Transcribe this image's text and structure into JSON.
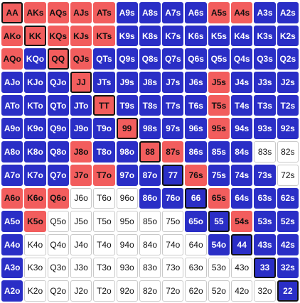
{
  "colors": {
    "raise": "#f25d5d",
    "call": "#2a2ec6",
    "fold": "#ffffff"
  },
  "grid": {
    "rows": [
      {
        "cells": [
          {
            "label": "AA",
            "action": "raise"
          },
          {
            "label": "AKs",
            "action": "raise"
          },
          {
            "label": "AQs",
            "action": "raise"
          },
          {
            "label": "AJs",
            "action": "raise"
          },
          {
            "label": "ATs",
            "action": "raise"
          },
          {
            "label": "A9s",
            "action": "call"
          },
          {
            "label": "A8s",
            "action": "call"
          },
          {
            "label": "A7s",
            "action": "call"
          },
          {
            "label": "A6s",
            "action": "call"
          },
          {
            "label": "A5s",
            "action": "raise"
          },
          {
            "label": "A4s",
            "action": "raise"
          },
          {
            "label": "A3s",
            "action": "call"
          },
          {
            "label": "A2s",
            "action": "call"
          }
        ]
      },
      {
        "cells": [
          {
            "label": "AKo",
            "action": "raise"
          },
          {
            "label": "KK",
            "action": "raise"
          },
          {
            "label": "KQs",
            "action": "raise"
          },
          {
            "label": "KJs",
            "action": "raise"
          },
          {
            "label": "KTs",
            "action": "raise"
          },
          {
            "label": "K9s",
            "action": "call"
          },
          {
            "label": "K8s",
            "action": "call"
          },
          {
            "label": "K7s",
            "action": "call"
          },
          {
            "label": "K6s",
            "action": "call"
          },
          {
            "label": "K5s",
            "action": "call"
          },
          {
            "label": "K4s",
            "action": "call"
          },
          {
            "label": "K3s",
            "action": "call"
          },
          {
            "label": "K2s",
            "action": "call"
          }
        ]
      },
      {
        "cells": [
          {
            "label": "AQo",
            "action": "raise"
          },
          {
            "label": "KQo",
            "action": "call"
          },
          {
            "label": "QQ",
            "action": "raise"
          },
          {
            "label": "QJs",
            "action": "raise"
          },
          {
            "label": "QTs",
            "action": "call"
          },
          {
            "label": "Q9s",
            "action": "call"
          },
          {
            "label": "Q8s",
            "action": "call"
          },
          {
            "label": "Q7s",
            "action": "call"
          },
          {
            "label": "Q6s",
            "action": "call"
          },
          {
            "label": "Q5s",
            "action": "call"
          },
          {
            "label": "Q4s",
            "action": "call"
          },
          {
            "label": "Q3s",
            "action": "call"
          },
          {
            "label": "Q2s",
            "action": "call"
          }
        ]
      },
      {
        "cells": [
          {
            "label": "AJo",
            "action": "call"
          },
          {
            "label": "KJo",
            "action": "call"
          },
          {
            "label": "QJo",
            "action": "call"
          },
          {
            "label": "JJ",
            "action": "raise"
          },
          {
            "label": "JTs",
            "action": "call"
          },
          {
            "label": "J9s",
            "action": "call"
          },
          {
            "label": "J8s",
            "action": "call"
          },
          {
            "label": "J7s",
            "action": "call"
          },
          {
            "label": "J6s",
            "action": "call"
          },
          {
            "label": "J5s",
            "action": "raise"
          },
          {
            "label": "J4s",
            "action": "call"
          },
          {
            "label": "J3s",
            "action": "call"
          },
          {
            "label": "J2s",
            "action": "call"
          }
        ]
      },
      {
        "cells": [
          {
            "label": "ATo",
            "action": "call"
          },
          {
            "label": "KTo",
            "action": "call"
          },
          {
            "label": "QTo",
            "action": "call"
          },
          {
            "label": "JTo",
            "action": "call"
          },
          {
            "label": "TT",
            "action": "raise"
          },
          {
            "label": "T9s",
            "action": "call"
          },
          {
            "label": "T8s",
            "action": "call"
          },
          {
            "label": "T7s",
            "action": "call"
          },
          {
            "label": "T6s",
            "action": "call"
          },
          {
            "label": "T5s",
            "action": "raise"
          },
          {
            "label": "T4s",
            "action": "call"
          },
          {
            "label": "T3s",
            "action": "call"
          },
          {
            "label": "T2s",
            "action": "call"
          }
        ]
      },
      {
        "cells": [
          {
            "label": "A9o",
            "action": "call"
          },
          {
            "label": "K9o",
            "action": "call"
          },
          {
            "label": "Q9o",
            "action": "call"
          },
          {
            "label": "J9o",
            "action": "call"
          },
          {
            "label": "T9o",
            "action": "call"
          },
          {
            "label": "99",
            "action": "raise"
          },
          {
            "label": "98s",
            "action": "call"
          },
          {
            "label": "97s",
            "action": "call"
          },
          {
            "label": "96s",
            "action": "call"
          },
          {
            "label": "95s",
            "action": "raise"
          },
          {
            "label": "94s",
            "action": "call"
          },
          {
            "label": "93s",
            "action": "call"
          },
          {
            "label": "92s",
            "action": "call"
          }
        ]
      },
      {
        "cells": [
          {
            "label": "A8o",
            "action": "call"
          },
          {
            "label": "K8o",
            "action": "call"
          },
          {
            "label": "Q8o",
            "action": "call"
          },
          {
            "label": "J8o",
            "action": "raise"
          },
          {
            "label": "T8o",
            "action": "call"
          },
          {
            "label": "98o",
            "action": "call"
          },
          {
            "label": "88",
            "action": "raise"
          },
          {
            "label": "87s",
            "action": "raise"
          },
          {
            "label": "86s",
            "action": "call"
          },
          {
            "label": "85s",
            "action": "call"
          },
          {
            "label": "84s",
            "action": "call"
          },
          {
            "label": "83s",
            "action": "fold"
          },
          {
            "label": "82s",
            "action": "fold"
          }
        ]
      },
      {
        "cells": [
          {
            "label": "A7o",
            "action": "call"
          },
          {
            "label": "K7o",
            "action": "call"
          },
          {
            "label": "Q7o",
            "action": "call"
          },
          {
            "label": "J7o",
            "action": "raise"
          },
          {
            "label": "T7o",
            "action": "raise"
          },
          {
            "label": "97o",
            "action": "call"
          },
          {
            "label": "87o",
            "action": "call"
          },
          {
            "label": "77",
            "action": "call"
          },
          {
            "label": "76s",
            "action": "raise"
          },
          {
            "label": "75s",
            "action": "call"
          },
          {
            "label": "74s",
            "action": "call"
          },
          {
            "label": "73s",
            "action": "call"
          },
          {
            "label": "72s",
            "action": "fold"
          }
        ]
      },
      {
        "cells": [
          {
            "label": "A6o",
            "action": "raise"
          },
          {
            "label": "K6o",
            "action": "raise"
          },
          {
            "label": "Q6o",
            "action": "raise"
          },
          {
            "label": "J6o",
            "action": "fold"
          },
          {
            "label": "T6o",
            "action": "fold"
          },
          {
            "label": "96o",
            "action": "fold"
          },
          {
            "label": "86o",
            "action": "call"
          },
          {
            "label": "76o",
            "action": "call"
          },
          {
            "label": "66",
            "action": "call"
          },
          {
            "label": "65s",
            "action": "raise"
          },
          {
            "label": "64s",
            "action": "call"
          },
          {
            "label": "63s",
            "action": "call"
          },
          {
            "label": "62s",
            "action": "call"
          }
        ]
      },
      {
        "cells": [
          {
            "label": "A5o",
            "action": "call"
          },
          {
            "label": "K5o",
            "action": "raise"
          },
          {
            "label": "Q5o",
            "action": "fold"
          },
          {
            "label": "J5o",
            "action": "fold"
          },
          {
            "label": "T5o",
            "action": "fold"
          },
          {
            "label": "95o",
            "action": "fold"
          },
          {
            "label": "85o",
            "action": "fold"
          },
          {
            "label": "75o",
            "action": "fold"
          },
          {
            "label": "65o",
            "action": "call"
          },
          {
            "label": "55",
            "action": "call"
          },
          {
            "label": "54s",
            "action": "raise"
          },
          {
            "label": "53s",
            "action": "call"
          },
          {
            "label": "52s",
            "action": "call"
          }
        ]
      },
      {
        "cells": [
          {
            "label": "A4o",
            "action": "call"
          },
          {
            "label": "K4o",
            "action": "fold"
          },
          {
            "label": "Q4o",
            "action": "fold"
          },
          {
            "label": "J4o",
            "action": "fold"
          },
          {
            "label": "T4o",
            "action": "fold"
          },
          {
            "label": "94o",
            "action": "fold"
          },
          {
            "label": "84o",
            "action": "fold"
          },
          {
            "label": "74o",
            "action": "fold"
          },
          {
            "label": "64o",
            "action": "fold"
          },
          {
            "label": "54o",
            "action": "call"
          },
          {
            "label": "44",
            "action": "call"
          },
          {
            "label": "43s",
            "action": "call"
          },
          {
            "label": "42s",
            "action": "call"
          }
        ]
      },
      {
        "cells": [
          {
            "label": "A3o",
            "action": "call"
          },
          {
            "label": "K3o",
            "action": "fold"
          },
          {
            "label": "Q3o",
            "action": "fold"
          },
          {
            "label": "J3o",
            "action": "fold"
          },
          {
            "label": "T3o",
            "action": "fold"
          },
          {
            "label": "93o",
            "action": "fold"
          },
          {
            "label": "83o",
            "action": "fold"
          },
          {
            "label": "73o",
            "action": "fold"
          },
          {
            "label": "63o",
            "action": "fold"
          },
          {
            "label": "53o",
            "action": "fold"
          },
          {
            "label": "43o",
            "action": "fold"
          },
          {
            "label": "33",
            "action": "call"
          },
          {
            "label": "32s",
            "action": "call"
          }
        ]
      },
      {
        "cells": [
          {
            "label": "A2o",
            "action": "call"
          },
          {
            "label": "K2o",
            "action": "fold"
          },
          {
            "label": "Q2o",
            "action": "fold"
          },
          {
            "label": "J2o",
            "action": "fold"
          },
          {
            "label": "T2o",
            "action": "fold"
          },
          {
            "label": "92o",
            "action": "fold"
          },
          {
            "label": "82o",
            "action": "fold"
          },
          {
            "label": "72o",
            "action": "fold"
          },
          {
            "label": "62o",
            "action": "fold"
          },
          {
            "label": "52o",
            "action": "fold"
          },
          {
            "label": "42o",
            "action": "fold"
          },
          {
            "label": "32o",
            "action": "fold"
          },
          {
            "label": "22",
            "action": "call"
          }
        ]
      }
    ]
  }
}
